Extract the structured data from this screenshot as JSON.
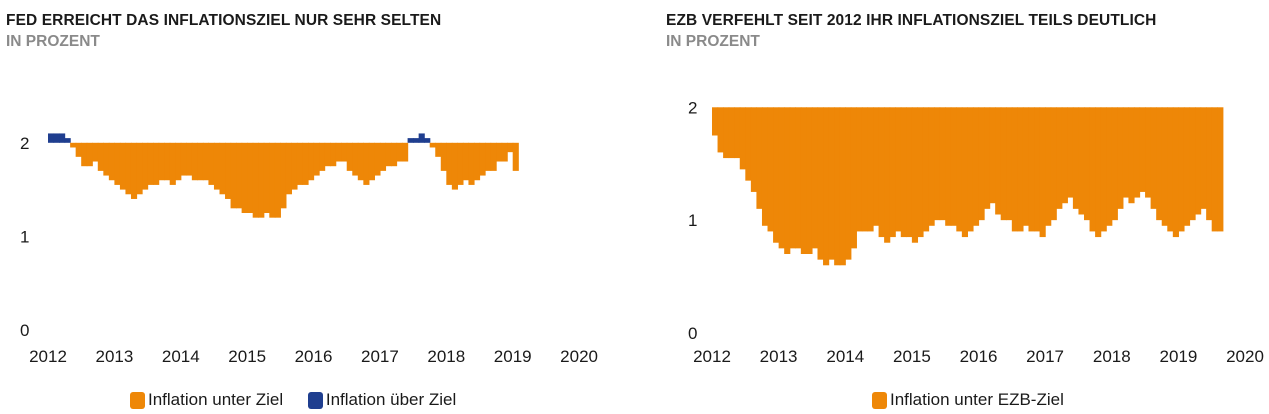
{
  "colors": {
    "under": "#EE8707",
    "over": "#1F3E8F",
    "text": "#1a1a1a",
    "subtitle": "#8a8a8a"
  },
  "chart_data": [
    {
      "type": "area",
      "title": "FED ERREICHT DAS INFLATIONSZIEL NUR SEHR SELTEN",
      "subtitle": "IN PROZENT",
      "target": 2,
      "ylim": [
        0,
        2.5
      ],
      "yticks": [
        0,
        1,
        2
      ],
      "xlim": [
        2012,
        2020.3
      ],
      "xticks": [
        "2012",
        "2013",
        "2014",
        "2015",
        "2016",
        "2017",
        "2018",
        "2019",
        "2020"
      ],
      "x_start": 2012.0,
      "x_step_months": 1,
      "values": [
        2.1,
        2.1,
        2.1,
        2.05,
        1.95,
        1.85,
        1.75,
        1.75,
        1.8,
        1.7,
        1.65,
        1.6,
        1.55,
        1.5,
        1.45,
        1.4,
        1.45,
        1.5,
        1.55,
        1.55,
        1.6,
        1.6,
        1.55,
        1.6,
        1.65,
        1.65,
        1.6,
        1.6,
        1.6,
        1.55,
        1.5,
        1.45,
        1.4,
        1.3,
        1.3,
        1.25,
        1.25,
        1.2,
        1.2,
        1.25,
        1.2,
        1.2,
        1.3,
        1.45,
        1.5,
        1.55,
        1.55,
        1.6,
        1.65,
        1.7,
        1.75,
        1.75,
        1.8,
        1.8,
        1.7,
        1.65,
        1.6,
        1.55,
        1.6,
        1.65,
        1.7,
        1.75,
        1.75,
        1.8,
        1.8,
        2.05,
        2.05,
        2.1,
        2.05,
        1.95,
        1.85,
        1.7,
        1.55,
        1.5,
        1.55,
        1.6,
        1.55,
        1.6,
        1.65,
        1.7,
        1.7,
        1.8,
        1.8,
        1.9,
        1.7
      ],
      "series": [
        {
          "name": "Inflation unter Ziel"
        },
        {
          "name": "Inflation über Ziel"
        }
      ]
    },
    {
      "type": "area",
      "title": "EZB VERFEHLT SEIT 2012 IHR INFLATIONSZIEL TEILS DEUTLICH",
      "subtitle": "IN PROZENT",
      "target": 2,
      "ylim": [
        0,
        2.1
      ],
      "yticks": [
        0,
        1,
        2
      ],
      "xlim": [
        2012,
        2020.3
      ],
      "xticks": [
        "2012",
        "2013",
        "2014",
        "2015",
        "2016",
        "2017",
        "2018",
        "2019",
        "2020"
      ],
      "x_start": 2012.0,
      "x_step_months": 1,
      "values": [
        1.75,
        1.6,
        1.55,
        1.55,
        1.55,
        1.45,
        1.35,
        1.25,
        1.1,
        0.95,
        0.9,
        0.8,
        0.75,
        0.7,
        0.75,
        0.75,
        0.7,
        0.7,
        0.75,
        0.65,
        0.6,
        0.65,
        0.6,
        0.6,
        0.65,
        0.75,
        0.9,
        0.9,
        0.9,
        0.95,
        0.85,
        0.8,
        0.85,
        0.9,
        0.85,
        0.85,
        0.8,
        0.85,
        0.9,
        0.95,
        1.0,
        1.0,
        0.95,
        0.95,
        0.9,
        0.85,
        0.9,
        0.95,
        1.0,
        1.1,
        1.15,
        1.05,
        1.0,
        1.0,
        0.9,
        0.9,
        0.95,
        0.9,
        0.9,
        0.85,
        0.95,
        1.0,
        1.1,
        1.15,
        1.2,
        1.1,
        1.05,
        1.0,
        0.9,
        0.85,
        0.9,
        0.95,
        1.0,
        1.1,
        1.2,
        1.15,
        1.2,
        1.25,
        1.2,
        1.1,
        1.0,
        0.95,
        0.9,
        0.85,
        0.9,
        0.95,
        1.0,
        1.05,
        1.1,
        1.0,
        0.9,
        0.9
      ],
      "series": [
        {
          "name": "Inflation unter EZB-Ziel"
        }
      ]
    }
  ],
  "legend_left": [
    {
      "label": "Inflation unter Ziel",
      "color": "#EE8707"
    },
    {
      "label": "Inflation über Ziel",
      "color": "#1F3E8F"
    }
  ],
  "legend_right": [
    {
      "label": "Inflation unter EZB-Ziel",
      "color": "#EE8707"
    }
  ]
}
